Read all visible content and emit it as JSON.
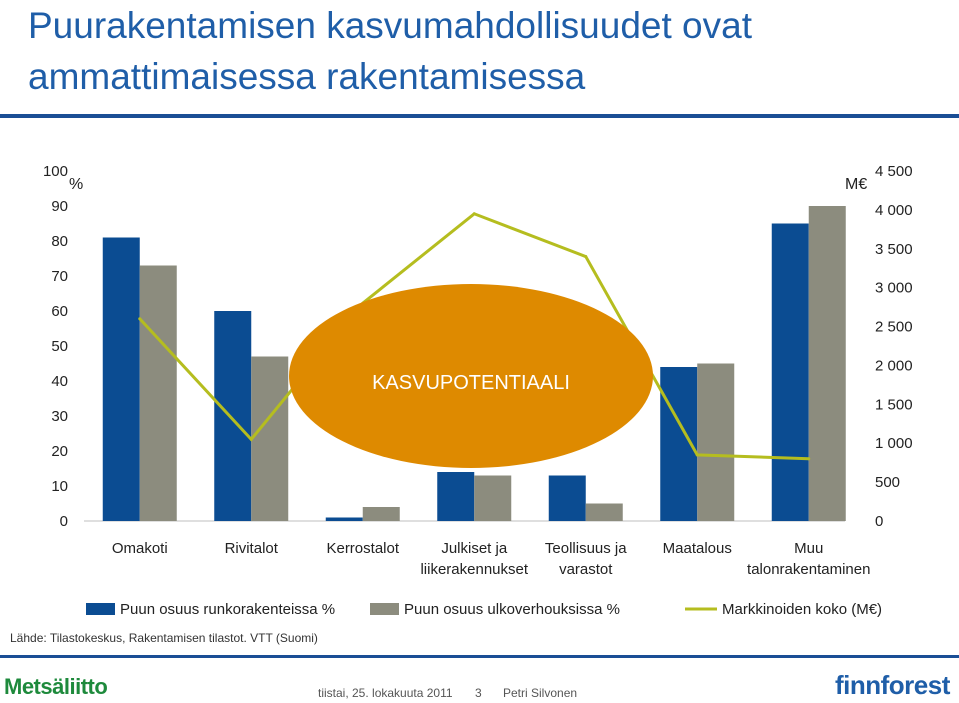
{
  "slide": {
    "title": "Puurakentamisen kasvumahdollisuudet ovat ammattimaisessa rakentamisessa",
    "source": "Lähde: Tilastokeskus, Rakentamisen tilastot. VTT (Suomi)",
    "footer": {
      "brand_left": "Metsäliitto",
      "date": "tiistai, 25. lokakuuta 2011",
      "page": "3",
      "author": "Petri Silvonen",
      "brand_right": "finnforest"
    }
  },
  "chart_data": {
    "type": "bar",
    "title": "",
    "categories": [
      [
        "Omakoti"
      ],
      [
        "Rivitalot"
      ],
      [
        "Kerrostalot"
      ],
      [
        "Julkiset ja",
        "liikerakennukset"
      ],
      [
        "Teollisuus ja",
        "varastot"
      ],
      [
        "Maatalous"
      ],
      [
        "Muu",
        "talonrakentaminen"
      ]
    ],
    "y_left": {
      "label": "%",
      "ylim": [
        0,
        100
      ],
      "ticks": [
        "0",
        "10",
        "20",
        "30",
        "40",
        "50",
        "60",
        "70",
        "80",
        "90",
        "100"
      ]
    },
    "y_right": {
      "label": "M€",
      "ylim": [
        0,
        4500
      ],
      "ticks": [
        "0",
        "500",
        "1 000",
        "1 500",
        "2 000",
        "2 500",
        "3 000",
        "3 500",
        "4 000",
        "4 500"
      ]
    },
    "series": [
      {
        "name": "Puun osuus runkorakenteissa %",
        "type": "bar",
        "axis": "left",
        "color": "#0b4c92",
        "values": [
          81,
          60,
          1,
          14,
          13,
          44,
          85
        ]
      },
      {
        "name": "Puun osuus ulkoverhouksissa %",
        "type": "bar",
        "axis": "left",
        "color": "#8c8c7e",
        "values": [
          73,
          47,
          4,
          13,
          5,
          45,
          90
        ]
      },
      {
        "name": "Markkinoiden koko (M€)",
        "type": "line",
        "axis": "right",
        "color": "#b5bd1f",
        "values": [
          2600,
          1050,
          2800,
          3950,
          3400,
          850,
          800
        ]
      }
    ],
    "annotation": {
      "text": "KASVUPOTENTIAALI",
      "shape": "ellipse",
      "color": "#de8a00"
    },
    "grid": false,
    "legend": "bottom"
  }
}
